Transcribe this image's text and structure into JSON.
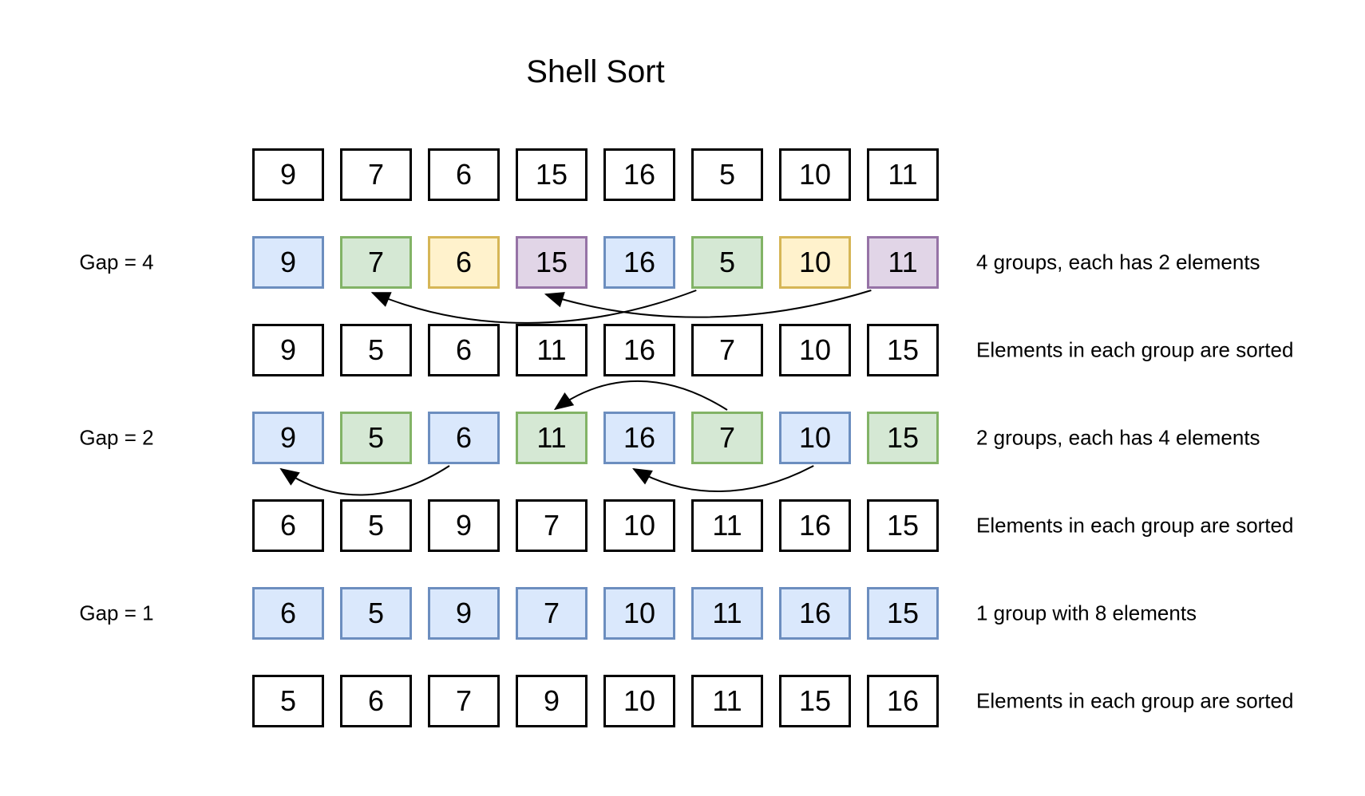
{
  "title": "Shell Sort",
  "palette": {
    "plain": {
      "fill": "#ffffff",
      "border": "#000000"
    },
    "blue": {
      "fill": "#dae8fc",
      "border": "#6c8ebf"
    },
    "green": {
      "fill": "#d5e8d4",
      "border": "#82b366"
    },
    "yellow": {
      "fill": "#fff2cc",
      "border": "#d6b656"
    },
    "purple": {
      "fill": "#e1d5e7",
      "border": "#9673a6"
    }
  },
  "arrow_color": "#000000",
  "rows": [
    {
      "name": "initial-array",
      "gap_label": "",
      "note": "",
      "values": [
        "9",
        "7",
        "6",
        "15",
        "16",
        "5",
        "10",
        "11"
      ],
      "box_colors": [
        "plain",
        "plain",
        "plain",
        "plain",
        "plain",
        "plain",
        "plain",
        "plain"
      ]
    },
    {
      "name": "gap4-grouping",
      "gap_label": "Gap = 4",
      "note": "4 groups, each has 2 elements",
      "values": [
        "9",
        "7",
        "6",
        "15",
        "16",
        "5",
        "10",
        "11"
      ],
      "box_colors": [
        "blue",
        "green",
        "yellow",
        "purple",
        "blue",
        "green",
        "yellow",
        "purple"
      ]
    },
    {
      "name": "gap4-sorted",
      "gap_label": "",
      "note": "Elements in each group are sorted",
      "values": [
        "9",
        "5",
        "6",
        "11",
        "16",
        "7",
        "10",
        "15"
      ],
      "box_colors": [
        "plain",
        "plain",
        "plain",
        "plain",
        "plain",
        "plain",
        "plain",
        "plain"
      ]
    },
    {
      "name": "gap2-grouping",
      "gap_label": "Gap = 2",
      "note": "2 groups, each has 4 elements",
      "values": [
        "9",
        "5",
        "6",
        "11",
        "16",
        "7",
        "10",
        "15"
      ],
      "box_colors": [
        "blue",
        "green",
        "blue",
        "green",
        "blue",
        "green",
        "blue",
        "green"
      ]
    },
    {
      "name": "gap2-sorted",
      "gap_label": "",
      "note": "Elements in each group are sorted",
      "values": [
        "6",
        "5",
        "9",
        "7",
        "10",
        "11",
        "16",
        "15"
      ],
      "box_colors": [
        "plain",
        "plain",
        "plain",
        "plain",
        "plain",
        "plain",
        "plain",
        "plain"
      ]
    },
    {
      "name": "gap1-grouping",
      "gap_label": "Gap = 1",
      "note": "1 group with 8 elements",
      "values": [
        "6",
        "5",
        "9",
        "7",
        "10",
        "11",
        "16",
        "15"
      ],
      "box_colors": [
        "blue",
        "blue",
        "blue",
        "blue",
        "blue",
        "blue",
        "blue",
        "blue"
      ]
    },
    {
      "name": "final-sorted",
      "gap_label": "",
      "note": "Elements in each group are sorted",
      "values": [
        "5",
        "6",
        "7",
        "9",
        "10",
        "11",
        "15",
        "16"
      ],
      "box_colors": [
        "plain",
        "plain",
        "plain",
        "plain",
        "plain",
        "plain",
        "plain",
        "plain"
      ]
    }
  ],
  "arrows": [
    {
      "row": 1,
      "from_index": 5,
      "to_index": 1,
      "side": "bottom"
    },
    {
      "row": 1,
      "from_index": 7,
      "to_index": 3,
      "side": "bottom"
    },
    {
      "row": 3,
      "from_index": 5,
      "to_index": 3,
      "side": "top"
    },
    {
      "row": 3,
      "from_index": 2,
      "to_index": 0,
      "side": "bottom"
    },
    {
      "row": 3,
      "from_index": 6,
      "to_index": 4,
      "side": "bottom"
    }
  ]
}
